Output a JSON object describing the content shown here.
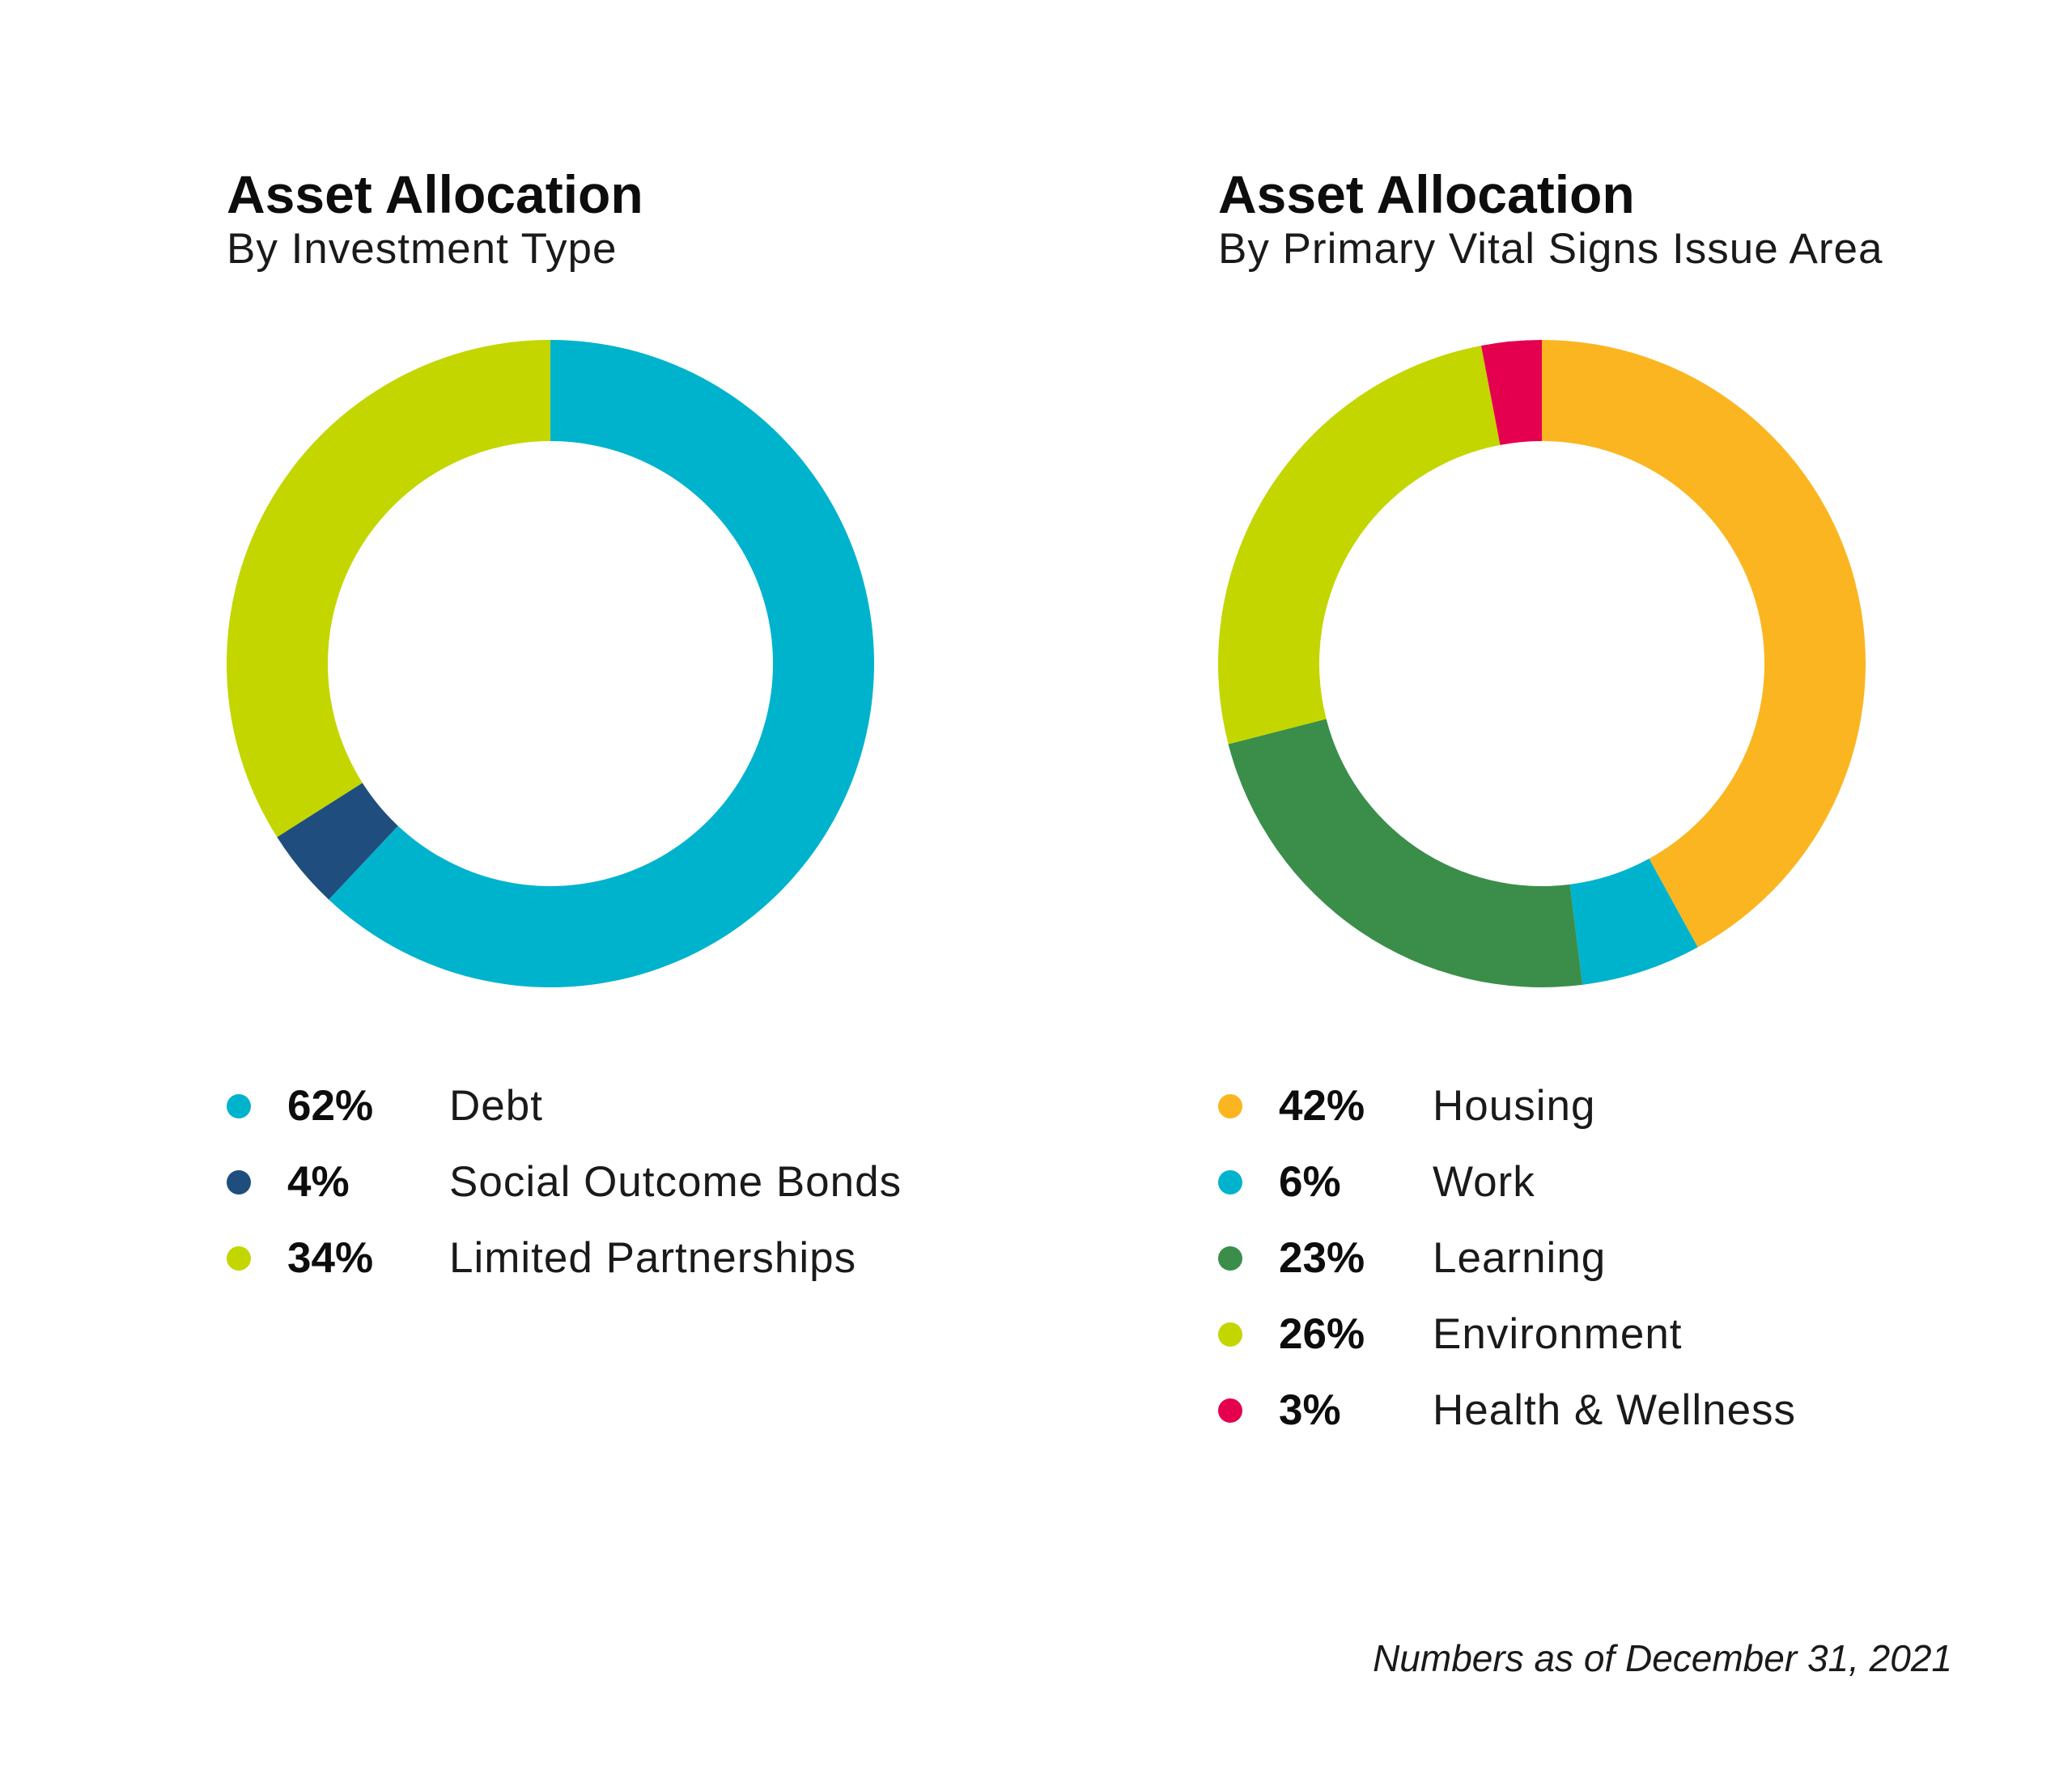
{
  "colors": {
    "debt": "#00B3CD",
    "social_outcome_bonds": "#1F4E7E",
    "limited_partnerships": "#C3D600",
    "housing": "#FBB520",
    "work": "#00B3CD",
    "learning": "#3A8E4A",
    "environment": "#C3D600",
    "health": "#E4004F"
  },
  "chart_data": [
    {
      "type": "pie",
      "title": "Asset Allocation",
      "subtitle": "By Investment Type",
      "categories": [
        "Debt",
        "Social Outcome Bonds",
        "Limited Partnerships"
      ],
      "values": [
        62,
        4,
        34
      ],
      "value_labels": [
        "62%",
        "4%",
        "34%"
      ],
      "colors": [
        "#00B3CD",
        "#1F4E7E",
        "#C3D600"
      ],
      "start_angle_deg": 0,
      "direction": "clockwise",
      "legend": "bottom"
    },
    {
      "type": "pie",
      "title": "Asset Allocation",
      "subtitle": "By Primary Vital Signs Issue Area",
      "categories": [
        "Housing",
        "Work",
        "Learning",
        "Environment",
        "Health & Wellness"
      ],
      "values": [
        42,
        6,
        23,
        26,
        3
      ],
      "value_labels": [
        "42%",
        "6%",
        "23%",
        "26%",
        "3%"
      ],
      "colors": [
        "#FBB520",
        "#00B3CD",
        "#3A8E4A",
        "#C3D600",
        "#E4004F"
      ],
      "start_angle_deg": 0,
      "direction": "clockwise",
      "legend": "bottom"
    }
  ],
  "footnote": "Numbers as of December 31, 2021"
}
